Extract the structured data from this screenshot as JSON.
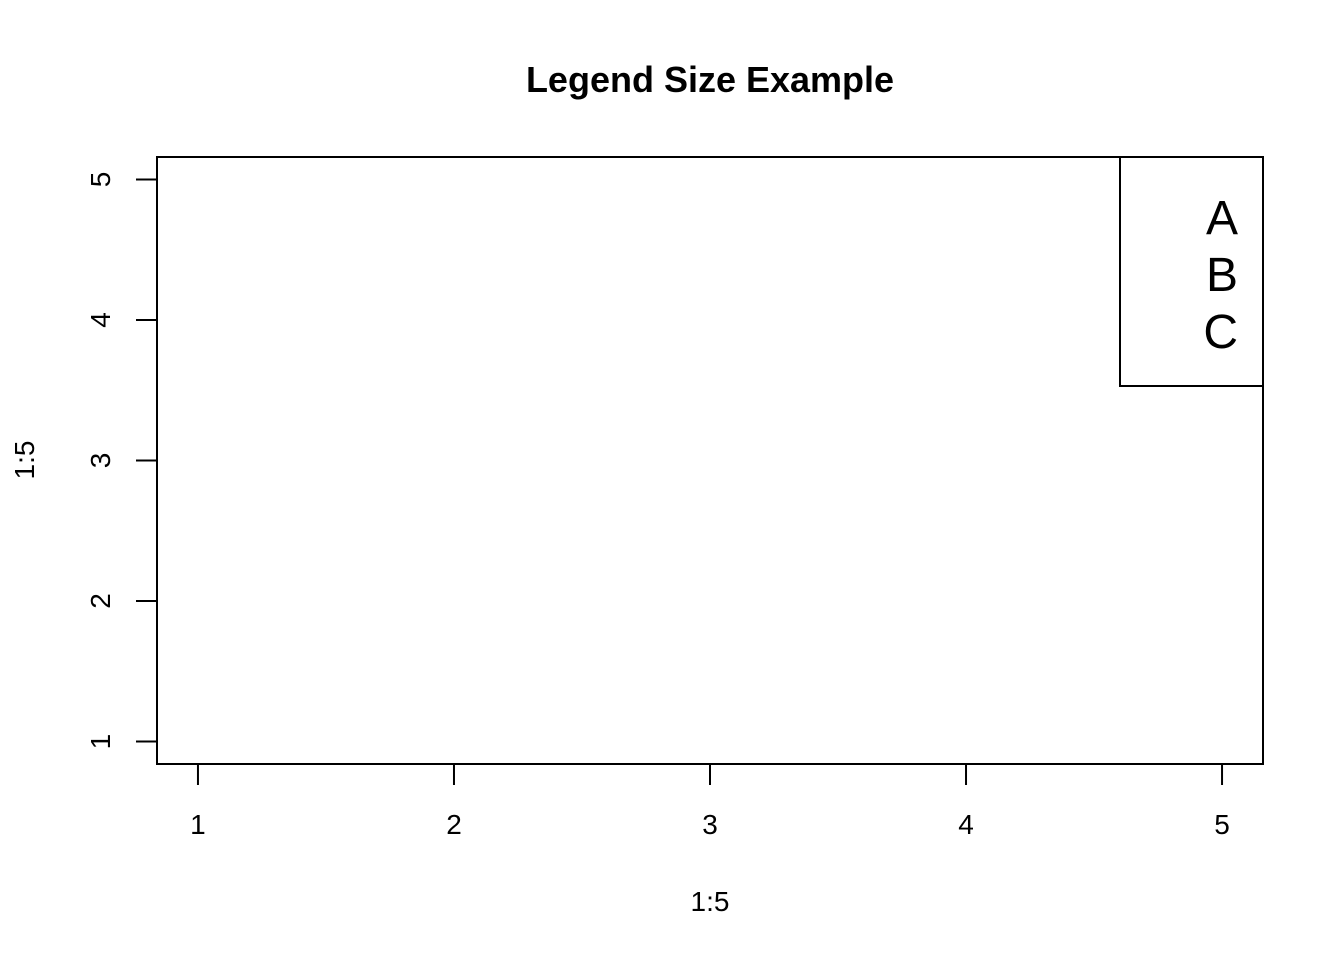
{
  "chart_data": {
    "type": "scatter",
    "title": "Legend Size Example",
    "xlabel": "1:5",
    "ylabel": "1:5",
    "xlim": [
      0.84,
      5.16
    ],
    "ylim": [
      0.84,
      5.16
    ],
    "x_ticks": [
      1,
      2,
      3,
      4,
      5
    ],
    "y_ticks": [
      1,
      2,
      3,
      4,
      5
    ],
    "series": [],
    "grid": false,
    "legend": {
      "position": "top-right",
      "entries": [
        "A",
        "B",
        "C"
      ]
    }
  }
}
